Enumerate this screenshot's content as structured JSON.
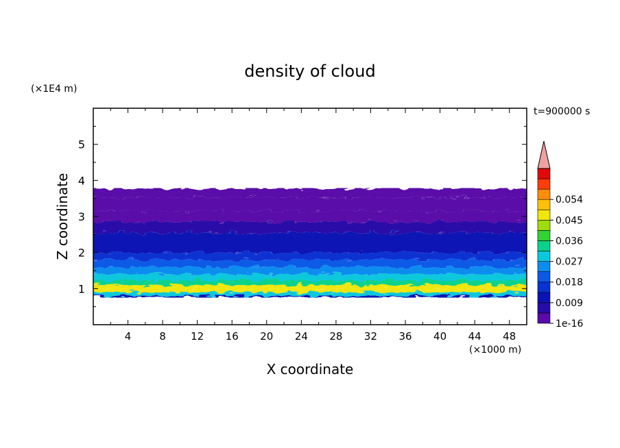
{
  "chart_data": {
    "type": "heatmap",
    "title": "density of cloud",
    "xlabel": "X coordinate",
    "ylabel": "Z coordinate",
    "x_unit": "(×1000 m)",
    "y_unit": "(×1E4 m)",
    "time_label": "t=900000 s",
    "xlim": [
      0,
      50
    ],
    "ylim": [
      0,
      6
    ],
    "x_ticks": [
      4,
      8,
      12,
      16,
      20,
      24,
      28,
      32,
      36,
      40,
      44,
      48
    ],
    "y_ticks": [
      1,
      2,
      3,
      4,
      5
    ],
    "colorbar": {
      "levels": [
        1e-16,
        0.0045,
        0.009,
        0.0135,
        0.018,
        0.0225,
        0.027,
        0.0315,
        0.036,
        0.0405,
        0.045,
        0.0495,
        0.054,
        0.0585
      ],
      "labels": [
        "1e-16",
        "0.009",
        "0.018",
        "0.027",
        "0.036",
        "0.045",
        "0.054"
      ],
      "colors": [
        "#5a0aa8",
        "#2a0aa8",
        "#0a14b4",
        "#0a32d2",
        "#0a5ae6",
        "#0a8cf0",
        "#0ac8dc",
        "#0ad28c",
        "#32d232",
        "#a0dc0a",
        "#f0e60a",
        "#ffbe0a",
        "#ff8c0a",
        "#ff3c0a",
        "#e10a0a"
      ],
      "extend_color": "#f0a0a0"
    },
    "profile": [
      {
        "z": 0.75,
        "value": 0.009
      },
      {
        "z": 0.85,
        "value": 0.03
      },
      {
        "z": 0.95,
        "value": 0.048
      },
      {
        "z": 1.05,
        "value": 0.045
      },
      {
        "z": 1.15,
        "value": 0.034
      },
      {
        "z": 1.3,
        "value": 0.028
      },
      {
        "z": 1.5,
        "value": 0.024
      },
      {
        "z": 1.7,
        "value": 0.02
      },
      {
        "z": 1.9,
        "value": 0.016
      },
      {
        "z": 2.1,
        "value": 0.012
      },
      {
        "z": 2.4,
        "value": 0.009
      },
      {
        "z": 2.7,
        "value": 0.006
      },
      {
        "z": 3.0,
        "value": 0.004
      },
      {
        "z": 3.3,
        "value": 0.002
      },
      {
        "z": 3.75,
        "value": 0.0005
      }
    ],
    "cloud_base_z": 0.75,
    "cloud_top_z": 3.78
  }
}
